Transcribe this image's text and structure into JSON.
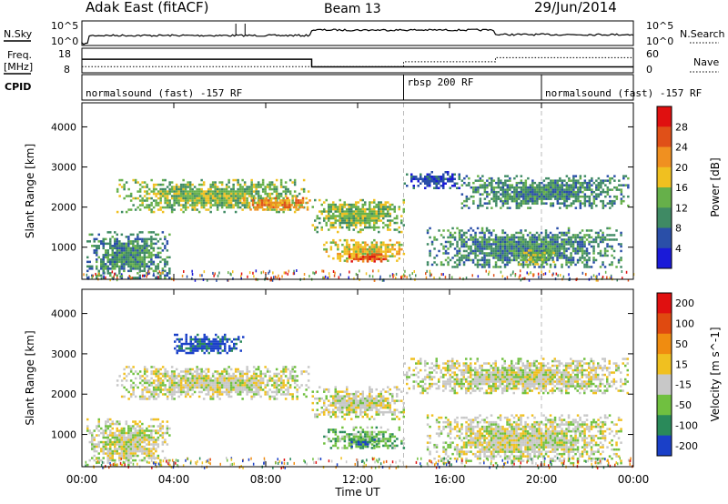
{
  "header": {
    "title": "Adak East (fitACF)",
    "beam": "Beam 13",
    "date": "29/Jun/2014"
  },
  "top_panels": {
    "nsky_label": "N.Sky",
    "nsky_ticks": [
      "10^5",
      "10^0"
    ],
    "nsearch_label": "N.Search",
    "nsearch_ticks": [
      "10^5",
      "10^0"
    ],
    "freq_label": "Freq.",
    "freq_unit": "[MHz]",
    "freq_ticks": [
      "18",
      "8"
    ],
    "nave_label": "Nave",
    "nave_ticks": [
      "60",
      "0"
    ],
    "cpid_label": "CPID",
    "cpid_segments": [
      {
        "label": "normalsound (fast) -157 RF",
        "start": 0,
        "end": 14
      },
      {
        "label": "rbsp 200 RF",
        "start": 14,
        "end": 20
      },
      {
        "label": "normalsound (fast) -157 RF",
        "start": 20,
        "end": 24
      }
    ],
    "freq_steps": [
      {
        "start": 0,
        "end": 10,
        "value": 13.5
      },
      {
        "start": 10,
        "end": 24,
        "value": 10.4
      }
    ],
    "nave_steps": [
      {
        "start": 0,
        "end": 14,
        "value": 15
      },
      {
        "start": 14,
        "end": 18,
        "value": 27
      },
      {
        "start": 18,
        "end": 24,
        "value": 37
      }
    ]
  },
  "chart_data": [
    {
      "type": "heatmap",
      "name": "power",
      "ylabel": "Slant Range [km]",
      "yticks": [
        "1000",
        "2000",
        "3000",
        "4000"
      ],
      "ylim": [
        200,
        4600
      ],
      "colorbar_label": "Power [dB]",
      "colorbar_ticks": [
        "4",
        "8",
        "12",
        "16",
        "20",
        "24",
        "28"
      ],
      "colors": [
        "#1a1ad8",
        "#2a4fa8",
        "#3f8a64",
        "#66b04a",
        "#f0c020",
        "#f09020",
        "#e05018",
        "#e01010"
      ],
      "bands": [
        {
          "t0": 0.2,
          "t1": 3.8,
          "r0": 250,
          "r1": 1400,
          "level": 2
        },
        {
          "t0": 1.5,
          "t1": 9.9,
          "r0": 1900,
          "r1": 2700,
          "level": 3
        },
        {
          "t0": 7.0,
          "t1": 9.9,
          "r0": 1950,
          "r1": 2250,
          "level": 5
        },
        {
          "t0": 10.0,
          "t1": 14.0,
          "r0": 1400,
          "r1": 2200,
          "level": 3
        },
        {
          "t0": 10.5,
          "t1": 14.0,
          "r0": 650,
          "r1": 1200,
          "level": 4
        },
        {
          "t0": 11.5,
          "t1": 13.2,
          "r0": 650,
          "r1": 900,
          "level": 6
        },
        {
          "t0": 14.0,
          "t1": 16.5,
          "r0": 2500,
          "r1": 2900,
          "level": 1
        },
        {
          "t0": 16.5,
          "t1": 23.8,
          "r0": 2000,
          "r1": 2800,
          "level": 2
        },
        {
          "t0": 15.0,
          "t1": 23.5,
          "r0": 500,
          "r1": 1500,
          "level": 2
        },
        {
          "t0": 19.0,
          "t1": 20.5,
          "r0": 600,
          "r1": 1000,
          "level": 3
        }
      ]
    },
    {
      "type": "heatmap",
      "name": "velocity",
      "ylabel": "Slant Range [km]",
      "yticks": [
        "1000",
        "2000",
        "3000",
        "4000"
      ],
      "ylim": [
        200,
        4600
      ],
      "xlabel": "Time UT",
      "xticks": [
        "00:00",
        "04:00",
        "08:00",
        "12:00",
        "16:00",
        "20:00",
        "00:00"
      ],
      "xlim": [
        0,
        24
      ],
      "colorbar_label": "Velocity [m s^-1]",
      "colorbar_ticks": [
        "200",
        "100",
        "50",
        "15",
        "-15",
        "-50",
        "-100",
        "-200"
      ],
      "colors": [
        "#1a40c8",
        "#2a8a5a",
        "#70c040",
        "#c8c8c8",
        "#f0c020",
        "#f08c10",
        "#e04a10",
        "#e01010"
      ],
      "bands": [
        {
          "t0": 0.2,
          "t1": 3.8,
          "r0": 250,
          "r1": 1400,
          "level": 3
        },
        {
          "t0": 1.5,
          "t1": 9.9,
          "r0": 1900,
          "r1": 2700,
          "level": 3
        },
        {
          "t0": 10.0,
          "t1": 14.0,
          "r0": 1400,
          "r1": 2200,
          "level": 3
        },
        {
          "t0": 10.5,
          "t1": 14.0,
          "r0": 650,
          "r1": 1200,
          "level": 2
        },
        {
          "t0": 11.5,
          "t1": 13.0,
          "r0": 700,
          "r1": 950,
          "level": 1
        },
        {
          "t0": 14.0,
          "t1": 23.8,
          "r0": 2000,
          "r1": 2900,
          "level": 3
        },
        {
          "t0": 15.0,
          "t1": 23.5,
          "r0": 300,
          "r1": 1500,
          "level": 3
        },
        {
          "t0": 4.0,
          "t1": 7.0,
          "r0": 3000,
          "r1": 3500,
          "level": 0
        }
      ]
    }
  ]
}
